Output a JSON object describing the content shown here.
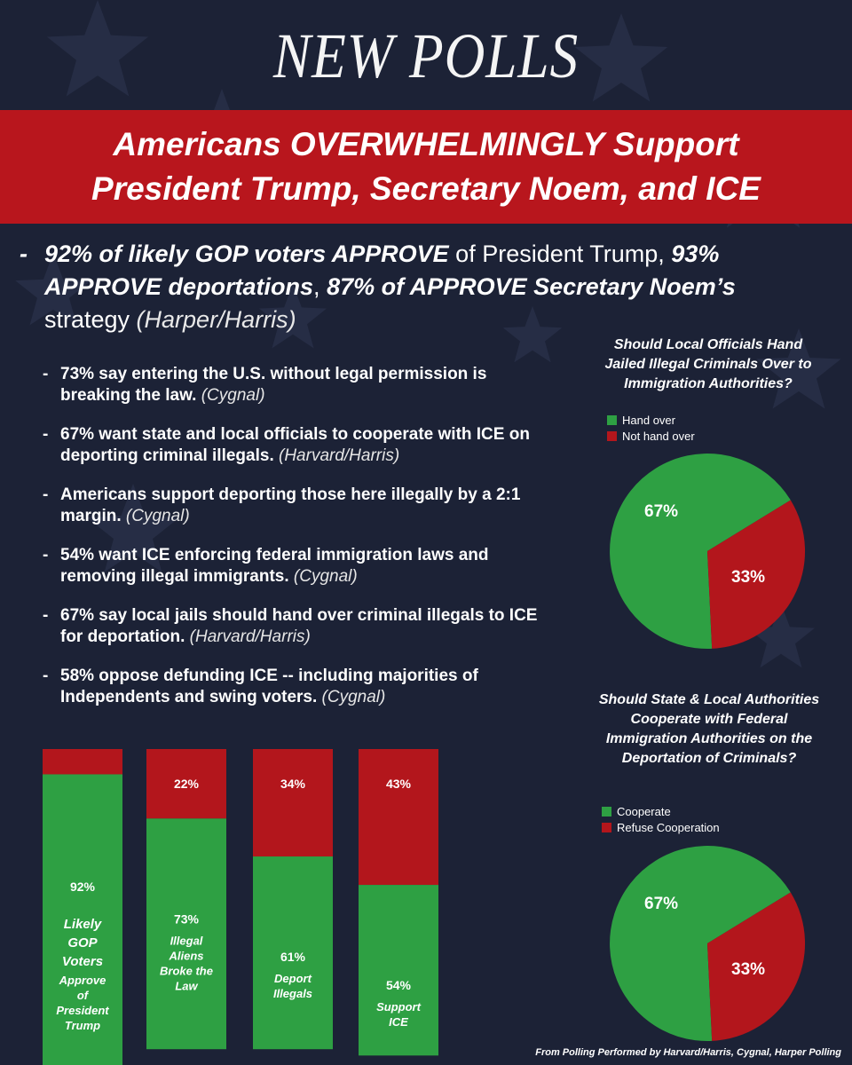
{
  "headline": "NEW POLLS",
  "banner": {
    "line1": "Americans OVERWHELMINGLY Support",
    "line2": "President Trump, Secretary Noem, and ICE"
  },
  "lead": {
    "dash": "-",
    "b1": "92% of likely GOP voters APPROVE",
    "t1": " of President Trump, ",
    "b2": "93% APPROVE deportations",
    "t2": ", ",
    "b3": "87% of APPROVE Secretary Noem’s",
    "t3": " strategy ",
    "source": "(Harper/Harris)"
  },
  "bullets": [
    {
      "dash": "-",
      "text": "73% say entering the U.S. without legal permission is breaking the law. ",
      "source": "(Cygnal)"
    },
    {
      "dash": "-",
      "text": "67% want state and local officials to cooperate with ICE on deporting criminal illegals. ",
      "source": "(Harvard/Harris)"
    },
    {
      "dash": "-",
      "text": "Americans support deporting those here illegally by a 2:1 margin. ",
      "source": "(Cygnal)"
    },
    {
      "dash": "-",
      "text": "54% want ICE enforcing federal immigration laws and removing illegal immigrants. ",
      "source": "(Cygnal)"
    },
    {
      "dash": "-",
      "text": "67% say local jails should hand over criminal illegals to ICE for deportation. ",
      "source": "(Harvard/Harris)"
    },
    {
      "dash": "-",
      "text": "58% oppose defunding ICE -- including majorities of Independents and swing voters. ",
      "source": "(Cygnal)"
    }
  ],
  "colors": {
    "background": "#1c2236",
    "banner": "#b8161d",
    "green": "#2ea043",
    "red": "#b3161c"
  },
  "footnote": "From Polling Performed by Harvard/Harris, Cygnal, Harper Polling",
  "chart_data": [
    {
      "type": "bar",
      "stacked": true,
      "categories": [
        "Likely GOP Voters Approve of President Trump",
        "Illegal Aliens Broke the Law",
        "Deport Illegals",
        "Support ICE"
      ],
      "series": [
        {
          "color": "#2ea043",
          "values": [
            92,
            73,
            61,
            54
          ],
          "labels": [
            "92%",
            "73%",
            "61%",
            "54%"
          ]
        },
        {
          "color": "#b3161c",
          "values": [
            8,
            22,
            34,
            43
          ],
          "labels": [
            "",
            "22%",
            "34%",
            "43%"
          ]
        }
      ],
      "category_labels": [
        {
          "lines": [
            "Likely",
            "GOP",
            "Voters"
          ],
          "sub": [
            "Approve",
            "of",
            "President",
            "Trump"
          ]
        },
        {
          "lines": [],
          "sub": [
            "Illegal",
            "Aliens",
            "Broke the",
            "Law"
          ]
        },
        {
          "lines": [],
          "sub": [
            "Deport",
            "Illegals"
          ]
        },
        {
          "lines": [],
          "sub": [
            "Support",
            "ICE"
          ]
        }
      ],
      "ylim": [
        0,
        100
      ],
      "grid": false
    },
    {
      "type": "pie",
      "title": "Should Local Officials Hand Jailed Illegal Criminals Over to Immigration Authorities?",
      "labels": [
        "Hand over",
        "Not hand over"
      ],
      "values": [
        67,
        33
      ],
      "value_labels": [
        "67%",
        "33%"
      ],
      "colors": [
        "#2ea043",
        "#b3161c"
      ],
      "legend": "top-left"
    },
    {
      "type": "pie",
      "title": "Should State & Local Authorities Cooperate with Federal Immigration Authorities on the Deportation of Criminals?",
      "labels": [
        "Cooperate",
        "Refuse Cooperation"
      ],
      "values": [
        67,
        33
      ],
      "value_labels": [
        "67%",
        "33%"
      ],
      "colors": [
        "#2ea043",
        "#b3161c"
      ],
      "legend": "top-left"
    }
  ]
}
